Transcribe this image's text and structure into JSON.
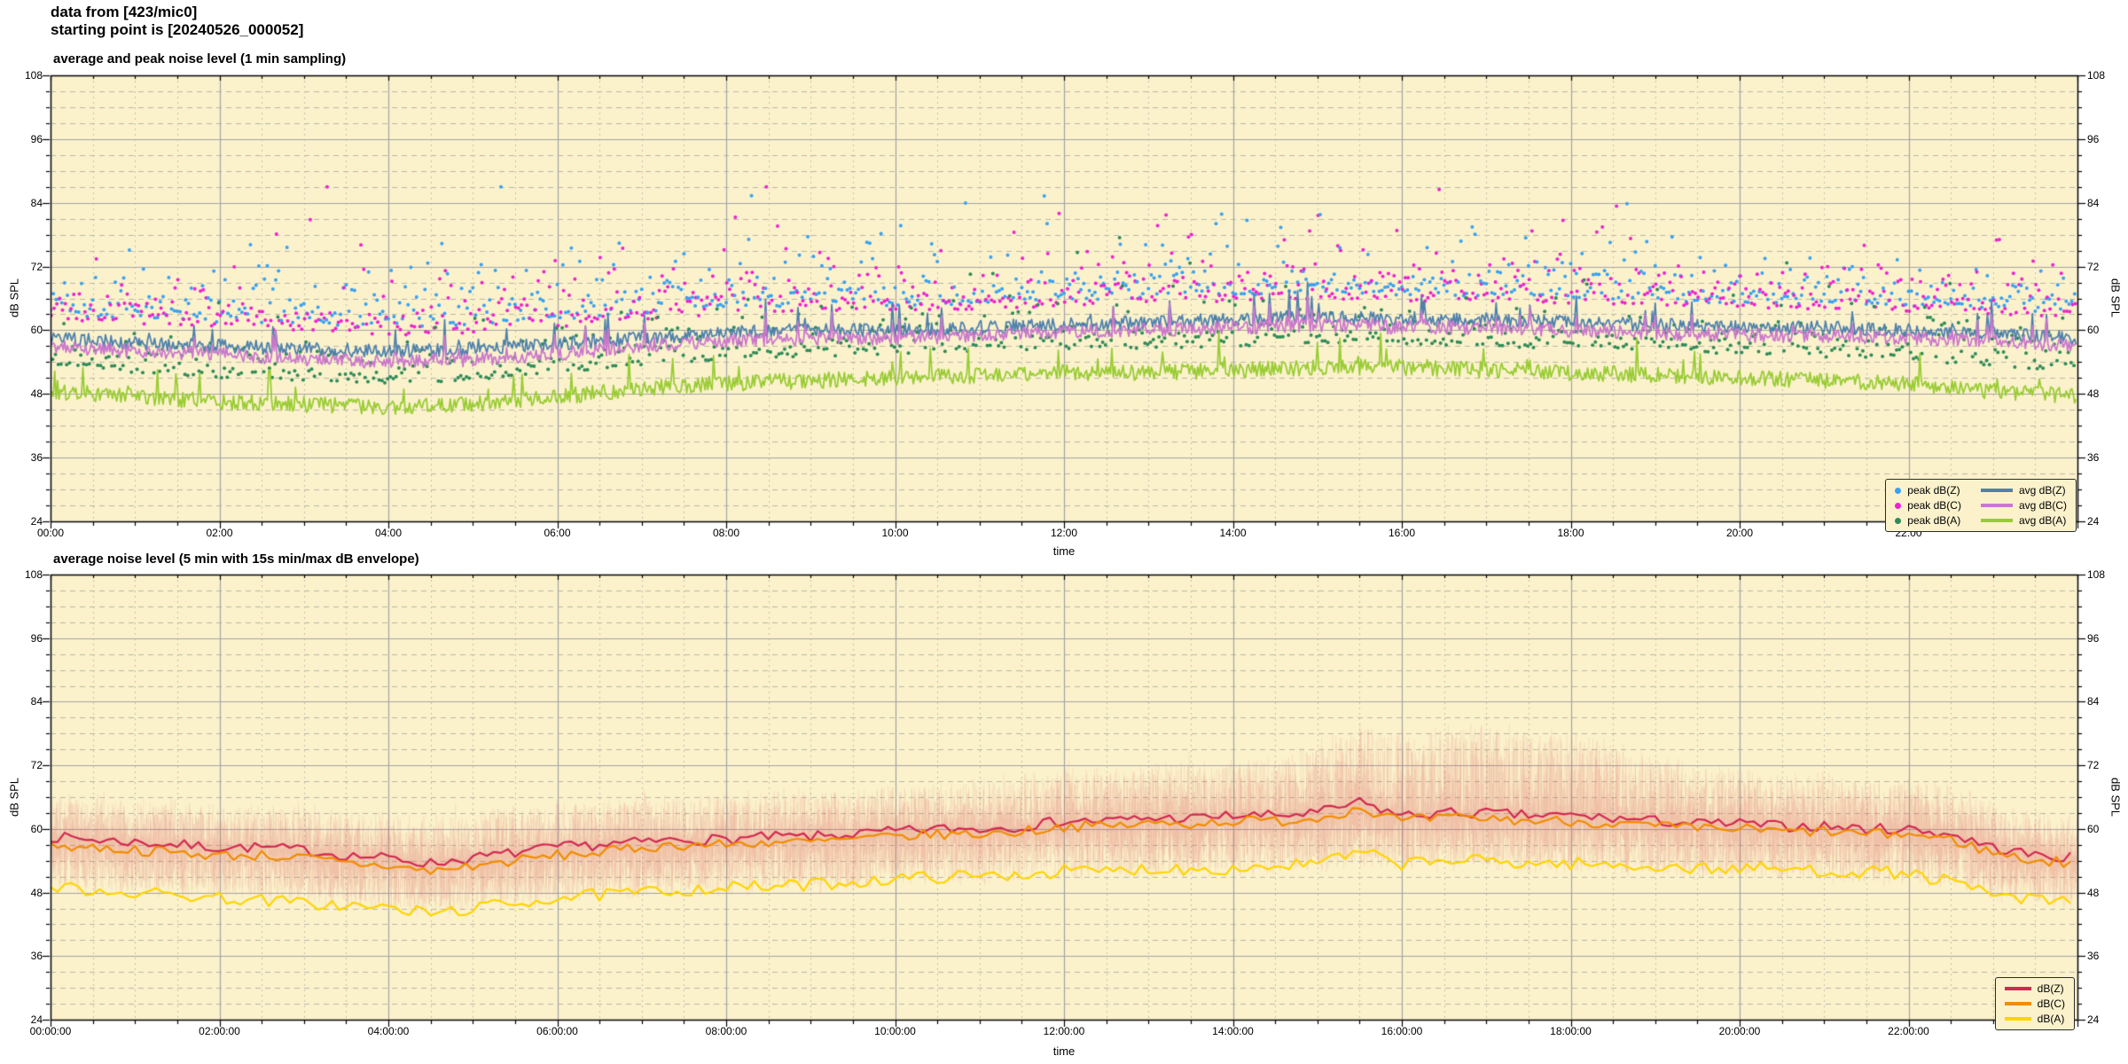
{
  "header": {
    "line1": "data from [423/mic0]",
    "line2": "starting point is [20240526_000052]"
  },
  "ui_colors": {
    "plot_background": "#fbf2cc",
    "page_background": "#ffffff",
    "major_grid": "#a3a3a3",
    "minor_grid_h": "#b9b6a6",
    "minor_grid_v": "#c3c0ae",
    "axis_border": "#000000"
  },
  "chart_data": [
    {
      "type": "line+scatter",
      "title": "average and peak noise level (1 min sampling)",
      "xlabel": "time",
      "ylabel": "dB SPL",
      "ylim": [
        24,
        108
      ],
      "ytick_labels": [
        "24",
        "36",
        "48",
        "60",
        "72",
        "84",
        "96",
        "108"
      ],
      "ytick_step_dB": 12,
      "yminor_step_dB": 3,
      "xlim_hours": [
        0,
        24
      ],
      "xtick_hours": [
        0,
        2,
        4,
        6,
        8,
        10,
        12,
        14,
        16,
        18,
        20,
        22
      ],
      "xtick_labels": [
        "00:00",
        "02:00",
        "04:00",
        "06:00",
        "08:00",
        "10:00",
        "12:00",
        "14:00",
        "16:00",
        "18:00",
        "20:00",
        "22:00"
      ],
      "xminor_step_hours": 0.5,
      "grid": true,
      "legend_position": "inside-bottom-right",
      "sampling_minutes": 1,
      "series": [
        {
          "name": "peak dB(Z)",
          "type": "scatter",
          "color": "#38a1f2",
          "offset_above_avg_dB": 4.5,
          "spread_dB": 3.8
        },
        {
          "name": "peak dB(C)",
          "type": "scatter",
          "color": "#ee22cf",
          "offset_above_avg_dB": 5.0,
          "spread_dB": 3.8
        },
        {
          "name": "peak dB(A)",
          "type": "scatter",
          "color": "#2e8b57",
          "offset_above_avg_dB": 4.5,
          "spread_dB": 3.2
        },
        {
          "name": "avg dB(Z)",
          "type": "line",
          "color": "#4f81ad",
          "anchors_dB_hourly": [
            58.5,
            57.5,
            57,
            56.5,
            56,
            56.5,
            57.5,
            58.5,
            59.5,
            60,
            60,
            60.5,
            61,
            61.5,
            62,
            62.5,
            62,
            62,
            61.5,
            61,
            60.5,
            60.5,
            60,
            59.5,
            58.5
          ],
          "noise_dB": 1.3,
          "spike_dB": 5.5,
          "spike_prob": 0.045
        },
        {
          "name": "avg dB(C)",
          "type": "line",
          "color": "#cc77cc",
          "anchors_dB_hourly": [
            57,
            56,
            55.5,
            54.5,
            54,
            54.5,
            55.5,
            57,
            58,
            58.5,
            58.5,
            59,
            59.5,
            60,
            60.5,
            61,
            60.5,
            60.5,
            60,
            59.5,
            59,
            59,
            58.5,
            58,
            57
          ],
          "noise_dB": 1.3,
          "spike_dB": 5.0,
          "spike_prob": 0.045
        },
        {
          "name": "avg dB(A)",
          "type": "line",
          "color": "#99cc33",
          "anchors_dB_hourly": [
            48.5,
            47.5,
            46.5,
            46,
            45.5,
            46,
            47.5,
            49,
            50,
            50.5,
            51,
            51.5,
            52,
            52,
            52.5,
            53,
            53,
            52.5,
            52,
            51.5,
            51,
            50.5,
            50,
            48.5,
            47.5
          ],
          "noise_dB": 1.5,
          "spike_dB": 6.0,
          "spike_prob": 0.045
        }
      ]
    },
    {
      "type": "line+envelope",
      "title": "average noise level (5 min with 15s min/max dB envelope)",
      "xlabel": "time",
      "ylabel": "dB SPL",
      "ylim": [
        24,
        108
      ],
      "ytick_labels": [
        "24",
        "36",
        "48",
        "60",
        "72",
        "84",
        "96",
        "108"
      ],
      "ytick_step_dB": 12,
      "yminor_step_dB": 3,
      "xlim_hours": [
        0,
        24
      ],
      "xtick_hours": [
        0,
        2,
        4,
        6,
        8,
        10,
        12,
        14,
        16,
        18,
        20,
        22
      ],
      "xtick_labels": [
        "00:00:00",
        "02:00:00",
        "04:00:00",
        "06:00:00",
        "08:00:00",
        "10:00:00",
        "12:00:00",
        "14:00:00",
        "16:00:00",
        "18:00:00",
        "20:00:00",
        "22:00:00"
      ],
      "xminor_step_hours": 0.5,
      "grid": true,
      "legend_position": "inside-bottom-right",
      "sampling_minutes": 5,
      "series": [
        {
          "name": "dB(Z)",
          "type": "line",
          "color": "#d22850",
          "anchors_dB_half_hourly": [
            58.5,
            58,
            57.5,
            57,
            56.5,
            56.5,
            56,
            55,
            54.5,
            53.5,
            54.5,
            55.5,
            56.5,
            57,
            57.5,
            58,
            58,
            58.5,
            58.5,
            59,
            59.5,
            60,
            60,
            60.5,
            61.5,
            61.5,
            62,
            62,
            62.5,
            62.5,
            63,
            65,
            62.5,
            63,
            63,
            62.5,
            62.5,
            62,
            61.5,
            61,
            61,
            60.5,
            60.5,
            60,
            60,
            59,
            56.5,
            55,
            54.5
          ],
          "noise_dB": 1.0
        },
        {
          "name": "dB(C)",
          "type": "line",
          "color": "#f28c00",
          "anchors_dB_half_hourly": [
            57,
            56.5,
            56,
            55.5,
            55,
            55,
            54.5,
            53.5,
            53,
            52,
            53,
            54,
            55,
            55.5,
            56.5,
            57,
            57,
            57.5,
            57.5,
            58,
            58.5,
            59,
            59,
            59.5,
            60.5,
            60.5,
            61,
            61,
            61.5,
            61.5,
            62,
            64,
            61.5,
            62,
            62,
            61.5,
            61.5,
            61,
            60.5,
            60,
            60,
            59.5,
            59.5,
            59,
            59,
            58,
            55.5,
            54,
            53.5
          ],
          "noise_dB": 1.0
        },
        {
          "name": "dB(A)",
          "type": "line",
          "color": "#ffd400",
          "anchors_dB_half_hourly": [
            49,
            48.5,
            48,
            47.5,
            47,
            46.5,
            46,
            45.5,
            45,
            44,
            45,
            46,
            47,
            47.5,
            48,
            48.5,
            49,
            49,
            49.5,
            50,
            50.5,
            51,
            51,
            51.5,
            52,
            52,
            52.5,
            52.5,
            52.5,
            53,
            53.5,
            55.5,
            53.5,
            54,
            54,
            53.5,
            53.5,
            53,
            53,
            52.5,
            52.5,
            52.5,
            52,
            52,
            51.5,
            50,
            47.5,
            46.5,
            46
          ],
          "noise_dB": 1.2
        }
      ],
      "envelope": {
        "of_series": "dB(Z)",
        "color": "#e06868",
        "sample_seconds": 15,
        "max_anchors_dB_half_hourly": [
          66,
          66,
          65,
          65,
          64,
          64,
          64,
          63,
          63,
          62,
          63,
          64,
          65,
          65,
          66,
          66,
          66,
          67,
          67,
          67,
          68,
          68,
          69,
          70,
          71,
          71,
          72,
          73,
          73,
          74,
          76,
          80,
          78,
          79,
          80,
          79,
          78,
          76,
          74,
          72,
          71,
          70,
          70,
          69,
          69,
          68,
          65,
          63,
          62
        ],
        "min_anchors_dB_half_hourly": [
          50,
          49.5,
          49,
          48.5,
          48,
          48,
          47.5,
          46.5,
          46,
          45,
          46,
          46.5,
          47.5,
          48,
          48.5,
          49,
          49,
          49.5,
          49.5,
          50,
          50.5,
          51,
          51,
          51.5,
          52,
          52,
          52.5,
          52.5,
          53,
          53,
          53.5,
          54,
          53,
          53.5,
          53.5,
          53,
          53,
          52.5,
          52.5,
          52,
          52,
          51.5,
          51.5,
          51,
          51,
          50,
          48,
          47,
          46.5
        ]
      }
    }
  ]
}
